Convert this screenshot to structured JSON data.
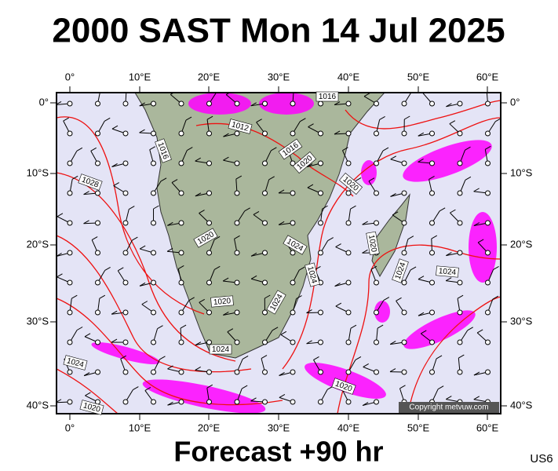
{
  "title": "2000 SAST Mon 14 Jul 2025",
  "footer": "Forecast +90 hr",
  "code": "US6",
  "copyright": "Copyright metvuw.com",
  "map": {
    "lon_labels": [
      "0°",
      "10°E",
      "20°E",
      "30°E",
      "40°E",
      "50°E",
      "60°E"
    ],
    "lat_labels": [
      "0°",
      "10°S",
      "20°S",
      "30°S",
      "40°S"
    ],
    "isobar_labels": [
      "1016",
      "1012",
      "1016",
      "1016",
      "1020",
      "1028",
      "1020",
      "1020",
      "1024",
      "1020",
      "1024",
      "1024",
      "1024",
      "1020",
      "1024",
      "1024",
      "1024",
      "1020",
      "1020"
    ]
  }
}
